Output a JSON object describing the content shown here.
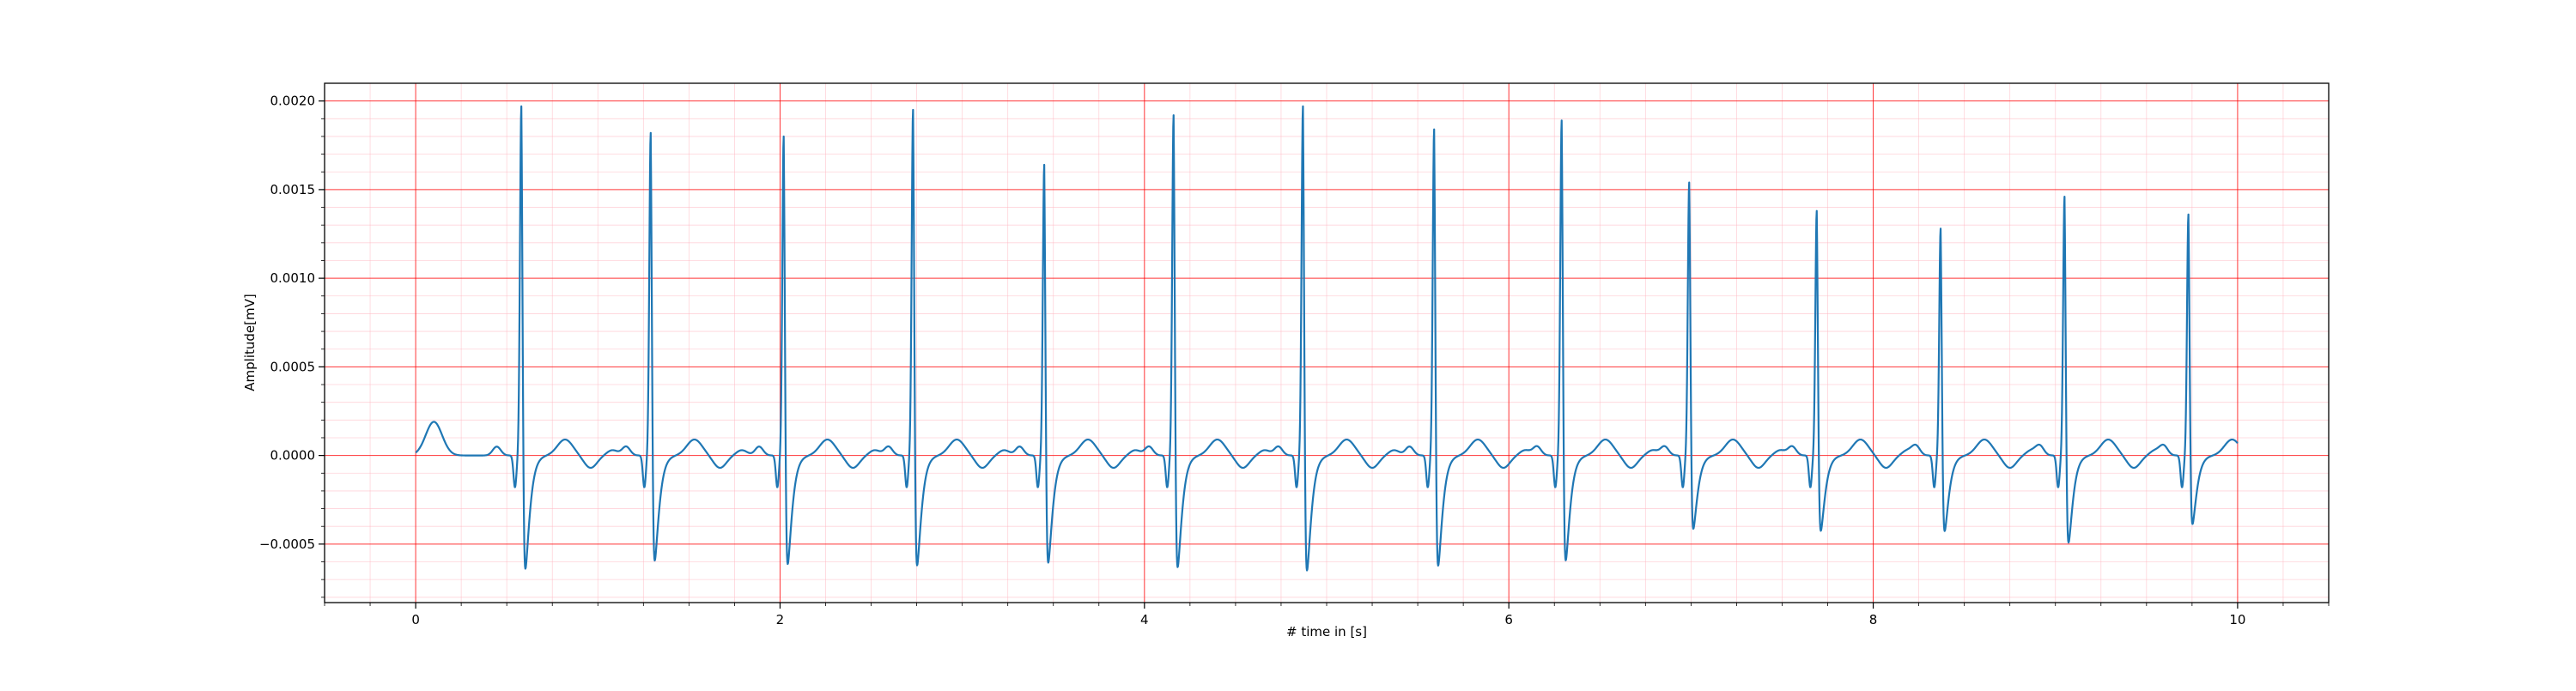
{
  "chart_data": {
    "type": "line",
    "title": "",
    "xlabel": "# time in [s]",
    "ylabel": "Amplitude[mV]",
    "xlim": [
      -0.5,
      10.5
    ],
    "ylim": [
      -0.00083,
      0.0021
    ],
    "x_ticks": [
      0,
      2,
      4,
      6,
      8,
      10
    ],
    "x_tick_labels": [
      "0",
      "2",
      "4",
      "6",
      "8",
      "10"
    ],
    "y_ticks": [
      -0.0005,
      0.0,
      0.0005,
      0.001,
      0.0015,
      0.002
    ],
    "y_tick_labels": [
      "−0.0005",
      "0.0000",
      "0.0005",
      "0.0010",
      "0.0015",
      "0.0020"
    ],
    "grid": {
      "major": true,
      "minor": true,
      "major_color": "#ff0000",
      "minor_color": "#ffb6c1"
    },
    "series": [
      {
        "color": "#1f77b4",
        "beats": [
          {
            "t": 0.58,
            "peak": 0.00197,
            "trough": -0.00069
          },
          {
            "t": 1.29,
            "peak": 0.00182,
            "trough": -0.00064
          },
          {
            "t": 2.02,
            "peak": 0.0018,
            "trough": -0.00066
          },
          {
            "t": 2.73,
            "peak": 0.00195,
            "trough": -0.00067
          },
          {
            "t": 3.45,
            "peak": 0.00164,
            "trough": -0.00065
          },
          {
            "t": 4.16,
            "peak": 0.00192,
            "trough": -0.00068
          },
          {
            "t": 4.87,
            "peak": 0.00197,
            "trough": -0.0007
          },
          {
            "t": 5.59,
            "peak": 0.00184,
            "trough": -0.00067
          },
          {
            "t": 6.29,
            "peak": 0.00189,
            "trough": -0.00064
          },
          {
            "t": 6.99,
            "peak": 0.00154,
            "trough": -0.00045
          },
          {
            "t": 7.69,
            "peak": 0.00138,
            "trough": -0.00046
          },
          {
            "t": 8.37,
            "peak": 0.00128,
            "trough": -0.00046
          },
          {
            "t": 9.05,
            "peak": 0.00146,
            "trough": -0.00053
          },
          {
            "t": 9.73,
            "peak": 0.00136,
            "trough": -0.00042
          }
        ]
      }
    ]
  }
}
